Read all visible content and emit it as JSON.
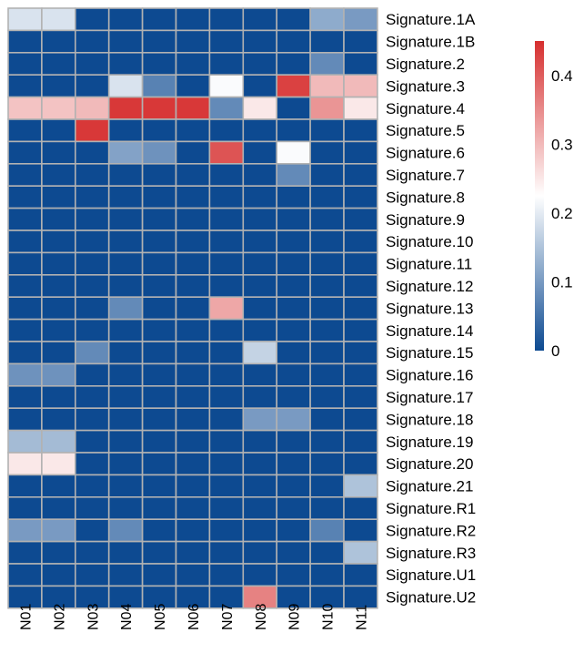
{
  "chart_data": {
    "type": "heatmap",
    "columns": [
      "N01",
      "N02",
      "N03",
      "N04",
      "N05",
      "N06",
      "N07",
      "N08",
      "N09",
      "N10",
      "N11"
    ],
    "rows": [
      "Signature.1A",
      "Signature.1B",
      "Signature.2",
      "Signature.3",
      "Signature.4",
      "Signature.5",
      "Signature.6",
      "Signature.7",
      "Signature.8",
      "Signature.9",
      "Signature.10",
      "Signature.11",
      "Signature.12",
      "Signature.13",
      "Signature.14",
      "Signature.15",
      "Signature.16",
      "Signature.17",
      "Signature.18",
      "Signature.19",
      "Signature.20",
      "Signature.21",
      "Signature.R1",
      "Signature.R2",
      "Signature.R3",
      "Signature.U1",
      "Signature.U2"
    ],
    "values": [
      [
        0.19,
        0.19,
        0,
        0,
        0,
        0,
        0,
        0,
        0,
        0.12,
        0.1
      ],
      [
        0,
        0,
        0,
        0,
        0,
        0,
        0,
        0,
        0,
        0,
        0
      ],
      [
        0,
        0,
        0,
        0,
        0,
        0,
        0,
        0,
        0,
        0.08,
        0
      ],
      [
        0,
        0,
        0,
        0.19,
        0.07,
        0,
        0.22,
        0,
        0.43,
        0.3,
        0.3
      ],
      [
        0.29,
        0.29,
        0.3,
        0.44,
        0.44,
        0.44,
        0.08,
        0.25,
        0,
        0.34,
        0.25
      ],
      [
        0,
        0,
        0.44,
        0,
        0,
        0,
        0,
        0,
        0,
        0,
        0
      ],
      [
        0,
        0,
        0,
        0.11,
        0.09,
        0,
        0.41,
        0,
        0.22,
        0,
        0
      ],
      [
        0,
        0,
        0,
        0,
        0,
        0,
        0,
        0,
        0.08,
        0,
        0
      ],
      [
        0,
        0,
        0,
        0,
        0,
        0,
        0,
        0,
        0,
        0,
        0
      ],
      [
        0,
        0,
        0,
        0,
        0,
        0,
        0,
        0,
        0,
        0,
        0
      ],
      [
        0,
        0,
        0,
        0,
        0,
        0,
        0,
        0,
        0,
        0,
        0
      ],
      [
        0,
        0,
        0,
        0,
        0,
        0,
        0,
        0,
        0,
        0,
        0
      ],
      [
        0,
        0,
        0,
        0,
        0,
        0,
        0,
        0,
        0,
        0,
        0
      ],
      [
        0,
        0,
        0,
        0.08,
        0,
        0,
        0.32,
        0,
        0,
        0,
        0
      ],
      [
        0,
        0,
        0,
        0,
        0,
        0,
        0,
        0,
        0,
        0,
        0
      ],
      [
        0,
        0,
        0.08,
        0,
        0,
        0,
        0,
        0.17,
        0,
        0,
        0
      ],
      [
        0.09,
        0.09,
        0,
        0,
        0,
        0,
        0,
        0,
        0,
        0,
        0
      ],
      [
        0,
        0,
        0,
        0,
        0,
        0,
        0,
        0,
        0,
        0,
        0
      ],
      [
        0,
        0,
        0,
        0,
        0,
        0,
        0,
        0.1,
        0.1,
        0,
        0
      ],
      [
        0.14,
        0.14,
        0,
        0,
        0,
        0,
        0,
        0,
        0,
        0,
        0
      ],
      [
        0.25,
        0.25,
        0,
        0,
        0,
        0,
        0,
        0,
        0,
        0,
        0
      ],
      [
        0,
        0,
        0,
        0,
        0,
        0,
        0,
        0,
        0,
        0,
        0.15
      ],
      [
        0,
        0,
        0,
        0,
        0,
        0,
        0,
        0,
        0,
        0,
        0
      ],
      [
        0.1,
        0.1,
        0,
        0.08,
        0,
        0,
        0,
        0,
        0,
        0.07,
        0
      ],
      [
        0,
        0,
        0,
        0,
        0,
        0,
        0,
        0,
        0,
        0,
        0.15
      ],
      [
        0,
        0,
        0,
        0,
        0,
        0,
        0,
        0,
        0,
        0,
        0
      ],
      [
        0,
        0,
        0,
        0,
        0,
        0,
        0,
        0.36,
        0,
        0,
        0
      ]
    ],
    "value_range": [
      0,
      0.45
    ],
    "legend": {
      "ticks": [
        0,
        0.1,
        0.2,
        0.3,
        0.4
      ],
      "tick_labels": [
        "0",
        "0.1",
        "0.2",
        "0.3",
        "0.4"
      ],
      "placement": "right"
    },
    "colors": {
      "low": "#0d4a91",
      "mid": "#ffffff",
      "high": "#d62f2f",
      "cell_border": "#b2b2b2"
    },
    "title": "",
    "xlabel": "",
    "ylabel": ""
  }
}
